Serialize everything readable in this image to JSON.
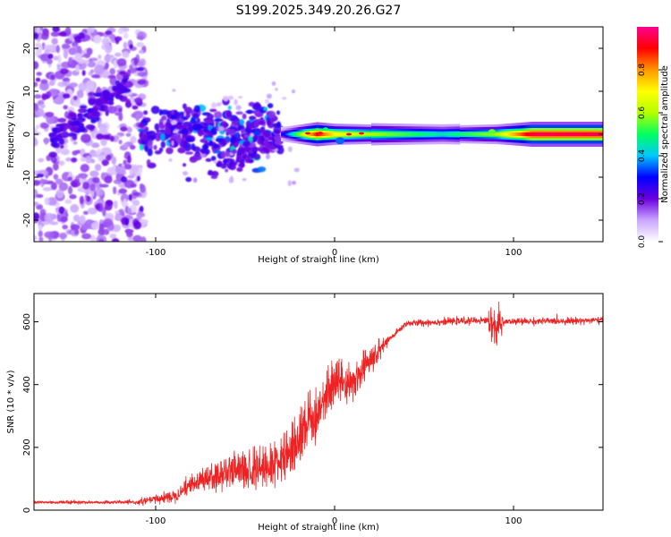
{
  "title": "S199.2025.349.20.26.G27",
  "chart_data": [
    {
      "type": "heatmap",
      "xlabel": "Height of straight line (km)",
      "ylabel": "Frequency (Hz)",
      "xlim": [
        -168,
        150
      ],
      "ylim": [
        -25,
        25
      ],
      "xticks": [
        -100,
        0,
        100
      ],
      "yticks": [
        -20,
        -10,
        0,
        10,
        20
      ],
      "colorbar": {
        "label": "Normalized spectral amplitude",
        "range": [
          0,
          1
        ],
        "ticks": [
          0.0,
          0.2,
          0.4,
          0.6,
          0.8
        ],
        "colors": [
          "#ffffff",
          "#c9a6ff",
          "#6b00e0",
          "#0000ff",
          "#00c8ff",
          "#00ff60",
          "#b4ff00",
          "#ffff00",
          "#ff9600",
          "#ff0000",
          "#ff0090"
        ]
      },
      "dominant_tone": {
        "freq_hz": 0,
        "description_points": [
          [
            -30,
            0,
            0.25
          ],
          [
            -10,
            0.2,
            0.9
          ],
          [
            0,
            0,
            0.7
          ],
          [
            20,
            0,
            0.6
          ],
          [
            60,
            0,
            0.45
          ],
          [
            90,
            0,
            0.6
          ],
          [
            110,
            0,
            0.95
          ],
          [
            150,
            0,
            0.95
          ]
        ]
      }
    },
    {
      "type": "line",
      "xlabel": "Height of straight line (km)",
      "ylabel": "SNR (10 * v/v)",
      "xlim": [
        -168,
        150
      ],
      "ylim": [
        0,
        690
      ],
      "xticks": [
        -100,
        0,
        100
      ],
      "yticks": [
        0,
        200,
        400,
        600
      ],
      "series": [
        {
          "name": "SNR",
          "color": "#ee2222",
          "trend": [
            [
              -168,
              25
            ],
            [
              -110,
              25
            ],
            [
              -90,
              45
            ],
            [
              -80,
              80
            ],
            [
              -70,
              100
            ],
            [
              -55,
              115
            ],
            [
              -40,
              130
            ],
            [
              -25,
              170
            ],
            [
              -15,
              270
            ],
            [
              -10,
              310
            ],
            [
              -5,
              360
            ],
            [
              0,
              390
            ],
            [
              10,
              410
            ],
            [
              20,
              470
            ],
            [
              30,
              540
            ],
            [
              40,
              595
            ],
            [
              60,
              600
            ],
            [
              85,
              605
            ],
            [
              90,
              585
            ],
            [
              95,
              600
            ],
            [
              150,
              605
            ]
          ]
        }
      ]
    }
  ]
}
